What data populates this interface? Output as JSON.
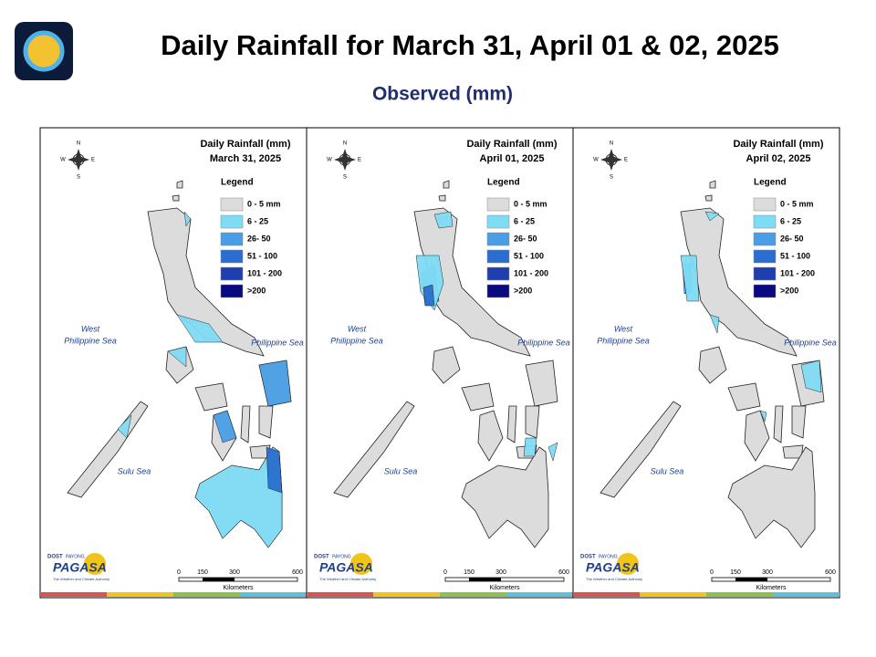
{
  "header": {
    "title": "Daily Rainfall for March 31, April 01 & 02, 2025",
    "subtitle": "Observed (mm)"
  },
  "panels": [
    {
      "heading": "Daily Rainfall (mm)",
      "date": "March 31, 2025"
    },
    {
      "heading": "Daily Rainfall (mm)",
      "date": "April 01, 2025"
    },
    {
      "heading": "Daily Rainfall (mm)",
      "date": "April 02, 2025"
    }
  ],
  "legend": {
    "title": "Legend",
    "items": [
      {
        "label": "0 - 5 mm",
        "color": "#dcdcdc"
      },
      {
        "label": "6 - 25",
        "color": "#7fdcf5"
      },
      {
        "label": "26- 50",
        "color": "#4a9ee6"
      },
      {
        "label": "51 - 100",
        "color": "#2a6fd0"
      },
      {
        "label": "101 - 200",
        "color": "#1f3fb0"
      },
      {
        "label": ">200",
        "color": "#0a0a80"
      }
    ]
  },
  "seas": {
    "west": [
      "West",
      "Philippine Sea"
    ],
    "east": "Philippine Sea",
    "sulu": "Sulu Sea"
  },
  "compass": {
    "n": "N",
    "s": "S",
    "w": "W",
    "e": "E"
  },
  "scale": {
    "ticks": [
      "0",
      "150",
      "300",
      "600"
    ],
    "unit": "Kilometers"
  },
  "logo": {
    "top": "DOST",
    "small": "PAYONG",
    "name": "PAGASA",
    "tagline": "The Weather and Climate Authority"
  }
}
